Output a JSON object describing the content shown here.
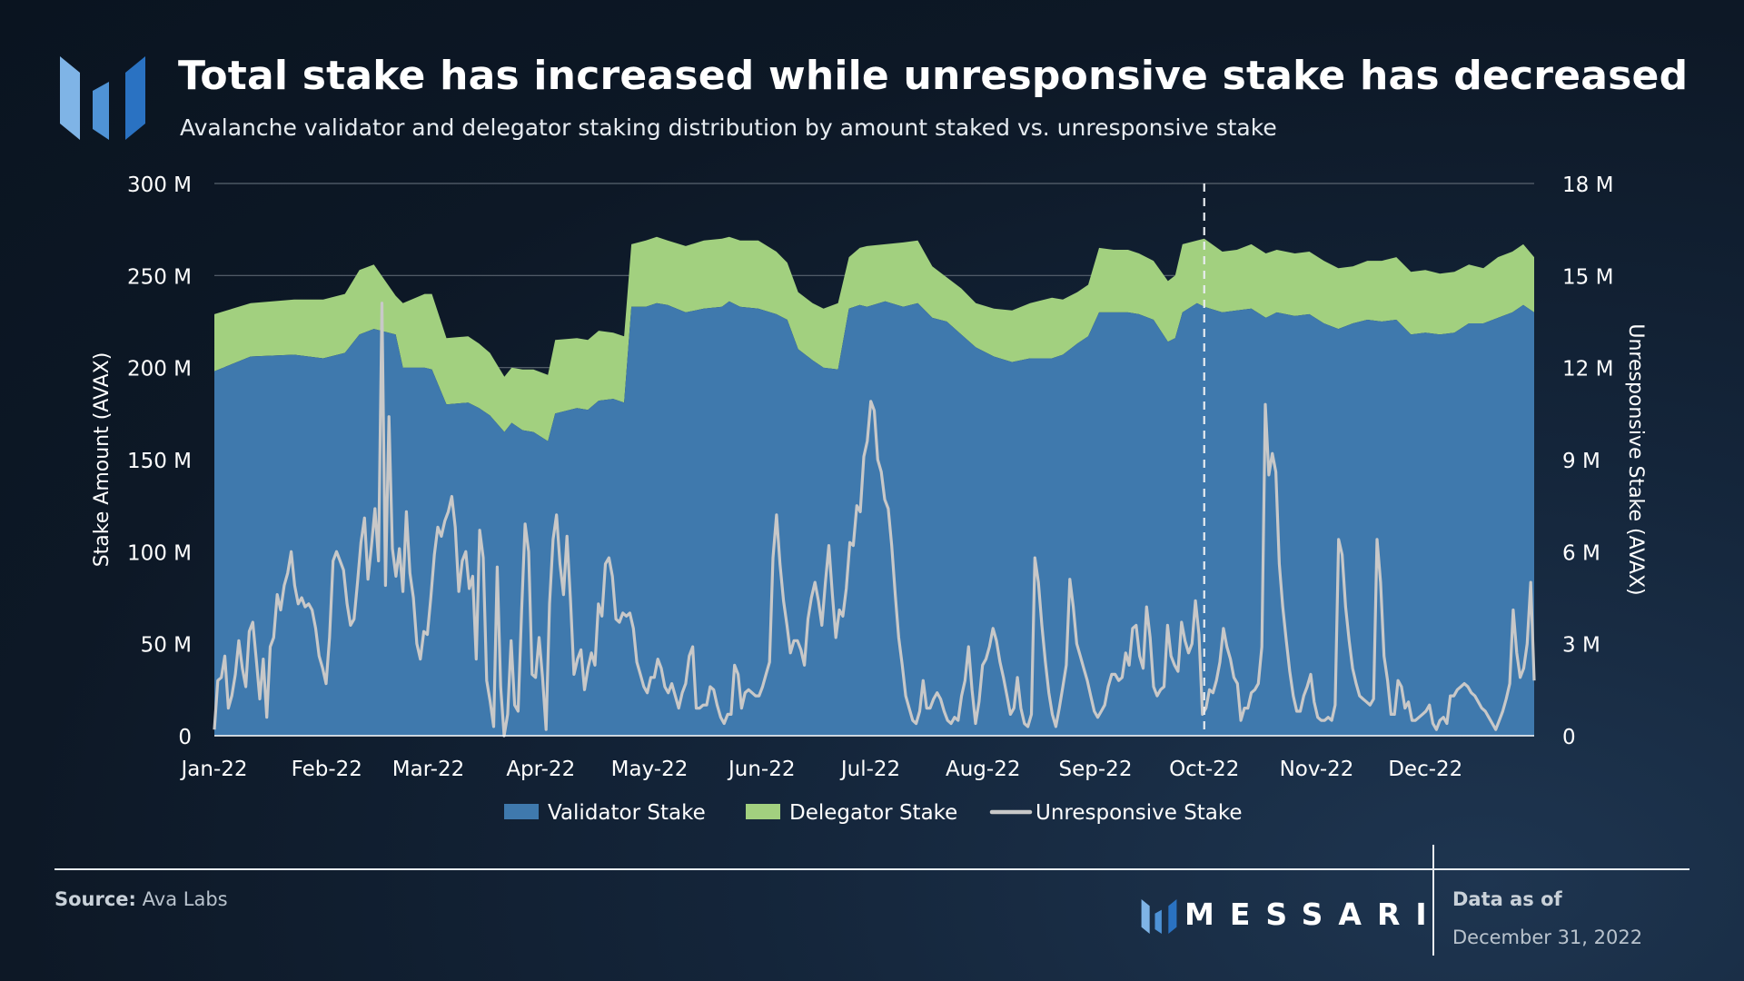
{
  "header": {
    "title": "Total stake has increased while unresponsive stake has decreased",
    "subtitle": "Avalanche validator and delegator staking distribution by amount staked vs. unresponsive stake"
  },
  "footer": {
    "source_label": "Source:",
    "source_value": "Ava Labs",
    "brand": "MESSARI",
    "asof_label": "Data as of",
    "asof_date": "December 31, 2022"
  },
  "colors": {
    "validator": "#3f79ad",
    "delegator": "#a2d07f",
    "unresponsive": "#c8c8c8",
    "grid": "#5a6470",
    "brand_light": "#7fb4e6",
    "brand_dark": "#2a72c2"
  },
  "chart_data": {
    "type": "area",
    "title": "Total stake has increased while unresponsive stake has decreased",
    "ylabel": "Stake Amount (AVAX)",
    "y2label": "Unresponsive Stake (AVAX)",
    "ylim": [
      0,
      300
    ],
    "y2lim": [
      0,
      18
    ],
    "y_ticks": [
      "0",
      "50 M",
      "100 M",
      "150 M",
      "200 M",
      "250 M",
      "300 M"
    ],
    "y2_ticks": [
      "0",
      "3 M",
      "6 M",
      "9 M",
      "12 M",
      "15 M",
      "18 M"
    ],
    "x_ticks": [
      "Jan-22",
      "Feb-22",
      "Mar-22",
      "Apr-22",
      "May-22",
      "Jun-22",
      "Jul-22",
      "Aug-22",
      "Sep-22",
      "Oct-22",
      "Nov-22",
      "Dec-22"
    ],
    "x_range_days": [
      0,
      364
    ],
    "vline_day": 273,
    "grid": true,
    "legend_position": "bottom",
    "legend": [
      "Validator Stake",
      "Delegator Stake",
      "Unresponsive Stake"
    ],
    "series": [
      {
        "name": "Validator Stake",
        "unit": "M AVAX",
        "axis": "left",
        "points": [
          [
            0,
            198
          ],
          [
            10,
            206
          ],
          [
            22,
            207
          ],
          [
            30,
            205
          ],
          [
            36,
            208
          ],
          [
            40,
            218
          ],
          [
            44,
            221
          ],
          [
            50,
            218
          ],
          [
            52,
            200
          ],
          [
            58,
            200
          ],
          [
            60,
            199
          ],
          [
            64,
            180
          ],
          [
            70,
            181
          ],
          [
            73,
            178
          ],
          [
            76,
            174
          ],
          [
            80,
            165
          ],
          [
            82,
            170
          ],
          [
            85,
            166
          ],
          [
            88,
            165
          ],
          [
            92,
            160
          ],
          [
            94,
            175
          ],
          [
            100,
            178
          ],
          [
            103,
            177
          ],
          [
            106,
            182
          ],
          [
            110,
            183
          ],
          [
            113,
            181
          ],
          [
            115,
            233
          ],
          [
            119,
            233
          ],
          [
            122,
            235
          ],
          [
            125,
            234
          ],
          [
            130,
            230
          ],
          [
            135,
            232
          ],
          [
            140,
            233
          ],
          [
            142,
            236
          ],
          [
            145,
            233
          ],
          [
            150,
            232
          ],
          [
            155,
            229
          ],
          [
            158,
            226
          ],
          [
            161,
            210
          ],
          [
            165,
            204
          ],
          [
            168,
            200
          ],
          [
            172,
            199
          ],
          [
            175,
            232
          ],
          [
            178,
            234
          ],
          [
            180,
            233
          ],
          [
            185,
            236
          ],
          [
            190,
            233
          ],
          [
            194,
            235
          ],
          [
            198,
            227
          ],
          [
            202,
            225
          ],
          [
            206,
            218
          ],
          [
            210,
            211
          ],
          [
            215,
            206
          ],
          [
            220,
            203
          ],
          [
            225,
            205
          ],
          [
            231,
            205
          ],
          [
            234,
            207
          ],
          [
            238,
            213
          ],
          [
            241,
            217
          ],
          [
            244,
            230
          ],
          [
            248,
            230
          ],
          [
            252,
            230
          ],
          [
            255,
            229
          ],
          [
            259,
            226
          ],
          [
            263,
            214
          ],
          [
            265,
            216
          ],
          [
            267,
            230
          ],
          [
            271,
            235
          ],
          [
            273,
            233
          ],
          [
            278,
            230
          ],
          [
            282,
            231
          ],
          [
            286,
            232
          ],
          [
            290,
            227
          ],
          [
            293,
            230
          ],
          [
            298,
            228
          ],
          [
            302,
            229
          ],
          [
            306,
            224
          ],
          [
            310,
            221
          ],
          [
            314,
            224
          ],
          [
            318,
            226
          ],
          [
            322,
            225
          ],
          [
            326,
            226
          ],
          [
            330,
            218
          ],
          [
            334,
            219
          ],
          [
            338,
            218
          ],
          [
            342,
            219
          ],
          [
            346,
            224
          ],
          [
            350,
            224
          ],
          [
            354,
            227
          ],
          [
            358,
            230
          ],
          [
            361,
            234
          ],
          [
            364,
            230
          ]
        ]
      },
      {
        "name": "Delegator Stake",
        "unit": "M AVAX",
        "axis": "left",
        "points": [
          [
            0,
            31
          ],
          [
            10,
            29
          ],
          [
            22,
            30
          ],
          [
            30,
            32
          ],
          [
            36,
            32
          ],
          [
            40,
            35
          ],
          [
            44,
            35
          ],
          [
            50,
            21
          ],
          [
            52,
            35
          ],
          [
            58,
            40
          ],
          [
            60,
            41
          ],
          [
            64,
            36
          ],
          [
            70,
            36
          ],
          [
            73,
            35
          ],
          [
            76,
            34
          ],
          [
            80,
            30
          ],
          [
            82,
            30
          ],
          [
            85,
            33
          ],
          [
            88,
            34
          ],
          [
            92,
            36
          ],
          [
            94,
            40
          ],
          [
            100,
            38
          ],
          [
            103,
            38
          ],
          [
            106,
            38
          ],
          [
            110,
            36
          ],
          [
            113,
            36
          ],
          [
            115,
            34
          ],
          [
            119,
            36
          ],
          [
            122,
            36
          ],
          [
            125,
            35
          ],
          [
            130,
            36
          ],
          [
            135,
            37
          ],
          [
            140,
            37
          ],
          [
            142,
            35
          ],
          [
            145,
            36
          ],
          [
            150,
            37
          ],
          [
            155,
            34
          ],
          [
            158,
            31
          ],
          [
            161,
            31
          ],
          [
            165,
            31
          ],
          [
            168,
            32
          ],
          [
            172,
            36
          ],
          [
            175,
            28
          ],
          [
            178,
            31
          ],
          [
            180,
            33
          ],
          [
            185,
            31
          ],
          [
            190,
            35
          ],
          [
            194,
            34
          ],
          [
            198,
            28
          ],
          [
            202,
            24
          ],
          [
            206,
            25
          ],
          [
            210,
            24
          ],
          [
            215,
            26
          ],
          [
            220,
            28
          ],
          [
            225,
            30
          ],
          [
            231,
            33
          ],
          [
            234,
            30
          ],
          [
            238,
            28
          ],
          [
            241,
            28
          ],
          [
            244,
            35
          ],
          [
            248,
            34
          ],
          [
            252,
            34
          ],
          [
            255,
            33
          ],
          [
            259,
            32
          ],
          [
            263,
            33
          ],
          [
            265,
            34
          ],
          [
            267,
            37
          ],
          [
            271,
            34
          ],
          [
            273,
            37
          ],
          [
            278,
            33
          ],
          [
            282,
            33
          ],
          [
            286,
            35
          ],
          [
            290,
            35
          ],
          [
            293,
            34
          ],
          [
            298,
            34
          ],
          [
            302,
            34
          ],
          [
            306,
            34
          ],
          [
            310,
            33
          ],
          [
            314,
            31
          ],
          [
            318,
            32
          ],
          [
            322,
            33
          ],
          [
            326,
            34
          ],
          [
            330,
            34
          ],
          [
            334,
            34
          ],
          [
            338,
            33
          ],
          [
            342,
            33
          ],
          [
            346,
            32
          ],
          [
            350,
            30
          ],
          [
            354,
            33
          ],
          [
            358,
            33
          ],
          [
            361,
            33
          ],
          [
            364,
            30
          ]
        ]
      },
      {
        "name": "Unresponsive Stake",
        "unit": "M AVAX",
        "axis": "right",
        "values": [
          0.2,
          1.8,
          1.9,
          2.6,
          0.9,
          1.3,
          2.0,
          3.1,
          2.2,
          1.6,
          3.4,
          3.7,
          2.5,
          1.2,
          2.5,
          0.6,
          2.9,
          3.2,
          4.6,
          4.1,
          4.9,
          5.3,
          6.0,
          4.9,
          4.3,
          4.5,
          4.2,
          4.3,
          4.1,
          3.5,
          2.6,
          2.2,
          1.7,
          3.2,
          5.7,
          6.0,
          5.7,
          5.4,
          4.3,
          3.6,
          3.8,
          5.0,
          6.3,
          7.1,
          5.1,
          6.2,
          7.4,
          5.7,
          14.1,
          4.9,
          10.4,
          6.1,
          5.2,
          6.1,
          4.7,
          7.3,
          5.3,
          4.5,
          3.0,
          2.5,
          3.4,
          3.3,
          4.5,
          5.9,
          6.8,
          6.5,
          7.0,
          7.3,
          7.8,
          6.8,
          4.7,
          5.7,
          6.0,
          4.8,
          5.2,
          2.5,
          6.7,
          5.8,
          1.8,
          1.1,
          0.3,
          5.5,
          1.6,
          0.0,
          0.7,
          3.1,
          1.0,
          0.8,
          4.1,
          6.9,
          6.0,
          2.0,
          1.9,
          3.2,
          1.9,
          0.2,
          4.3,
          6.4,
          7.2,
          5.6,
          4.6,
          6.5,
          4.4,
          2.0,
          2.5,
          2.8,
          1.5,
          2.2,
          2.7,
          2.3,
          4.3,
          3.9,
          5.6,
          5.8,
          5.2,
          3.8,
          3.7,
          4.0,
          3.9,
          4.0,
          3.5,
          2.4,
          2.0,
          1.6,
          1.4,
          1.9,
          1.9,
          2.5,
          2.2,
          1.6,
          1.4,
          1.7,
          1.3,
          0.9,
          1.4,
          1.7,
          2.6,
          2.9,
          0.9,
          0.9,
          1.0,
          1.0,
          1.6,
          1.5,
          1.0,
          0.6,
          0.4,
          0.7,
          0.7,
          2.3,
          2.0,
          0.9,
          1.4,
          1.5,
          1.4,
          1.3,
          1.3,
          1.6,
          2.0,
          2.4,
          5.8,
          7.2,
          5.6,
          4.4,
          3.6,
          2.7,
          3.1,
          3.1,
          2.8,
          2.3,
          3.8,
          4.5,
          5.0,
          4.4,
          3.6,
          5.0,
          6.2,
          4.6,
          3.2,
          4.1,
          3.9,
          4.8,
          6.3,
          6.2,
          7.5,
          7.3,
          9.1,
          9.6,
          10.9,
          10.6,
          9.0,
          8.6,
          7.7,
          7.4,
          6.2,
          4.6,
          3.2,
          2.3,
          1.3,
          0.9,
          0.5,
          0.4,
          0.8,
          1.8,
          0.9,
          0.9,
          1.2,
          1.4,
          1.2,
          0.8,
          0.5,
          0.4,
          0.6,
          0.5,
          1.3,
          1.8,
          2.9,
          1.5,
          0.4,
          1.1,
          2.3,
          2.5,
          2.9,
          3.5,
          3.1,
          2.4,
          1.9,
          1.3,
          0.7,
          0.9,
          1.9,
          0.9,
          0.4,
          0.3,
          0.7,
          5.8,
          5.0,
          3.6,
          2.4,
          1.4,
          0.7,
          0.3,
          0.9,
          1.6,
          2.3,
          5.1,
          4.2,
          3.0,
          2.6,
          2.2,
          1.8,
          1.3,
          0.8,
          0.6,
          0.8,
          1.0,
          1.6,
          2.0,
          2.0,
          1.8,
          1.9,
          2.7,
          2.3,
          3.5,
          3.6,
          2.6,
          2.2,
          4.2,
          3.2,
          1.6,
          1.3,
          1.5,
          1.6,
          3.6,
          2.6,
          2.3,
          2.1,
          3.7,
          3.1,
          2.7,
          3.0,
          4.4,
          3.3,
          0.7,
          0.9,
          1.5,
          1.4,
          1.8,
          2.4,
          3.5,
          2.9,
          2.5,
          1.9,
          1.7,
          0.5,
          0.9,
          0.9,
          1.4,
          1.5,
          1.7,
          2.9,
          10.8,
          8.5,
          9.2,
          8.6,
          5.6,
          4.2,
          3.1,
          2.1,
          1.3,
          0.8,
          0.8,
          1.3,
          1.6,
          2.0,
          1.1,
          0.6,
          0.5,
          0.5,
          0.6,
          0.5,
          1.0,
          6.4,
          5.9,
          4.2,
          3.1,
          2.2,
          1.7,
          1.3,
          1.2,
          1.1,
          1.0,
          1.2,
          6.4,
          5.0,
          2.6,
          1.8,
          0.7,
          0.7,
          1.8,
          1.6,
          0.9,
          1.1,
          0.5,
          0.5,
          0.6,
          0.7,
          0.8,
          1.0,
          0.4,
          0.2,
          0.5,
          0.6,
          0.4,
          1.3,
          1.3,
          1.5,
          1.6,
          1.7,
          1.6,
          1.4,
          1.3,
          1.1,
          0.9,
          0.8,
          0.6,
          0.4,
          0.2,
          0.5,
          0.8,
          1.2,
          1.7,
          4.1,
          2.7,
          1.9,
          2.2,
          3.0,
          5.0,
          1.8
        ]
      }
    ]
  }
}
